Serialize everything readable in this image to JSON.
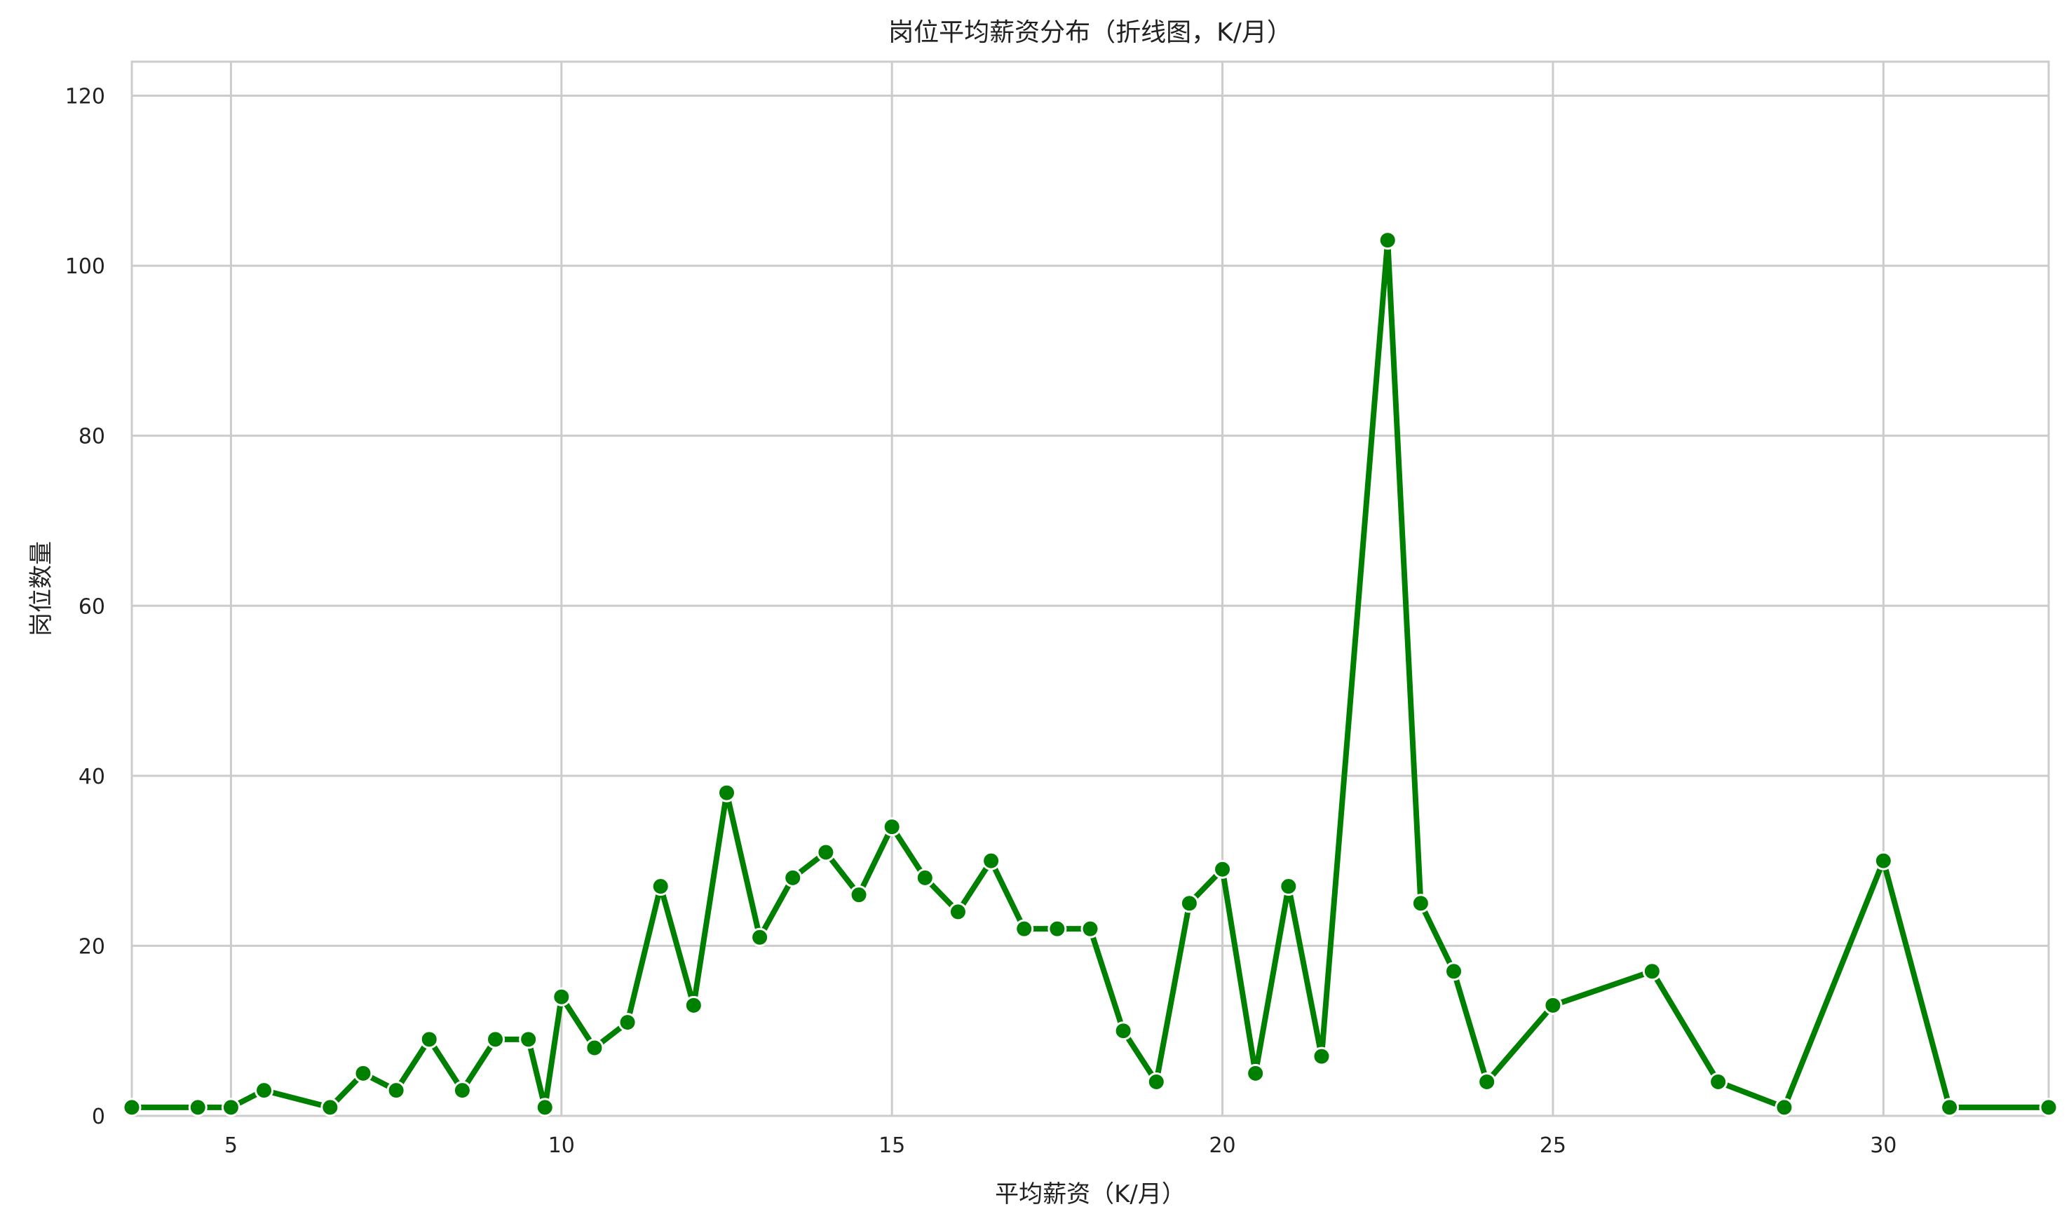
{
  "chart_data": {
    "type": "line",
    "title": "岗位平均薪资分布（折线图，K/月）",
    "xlabel": "平均薪资（K/月）",
    "ylabel": "岗位数量",
    "xlim": [
      3.5,
      32.5
    ],
    "ylim": [
      0,
      124
    ],
    "x_ticks": [
      5,
      10,
      15,
      20,
      25,
      30
    ],
    "y_ticks": [
      0,
      20,
      40,
      60,
      80,
      100,
      120
    ],
    "grid": true,
    "legend": "none",
    "line_color": "#008000",
    "series": [
      {
        "x": [
          3.5,
          4.5,
          5,
          5.5,
          6.5,
          7,
          7.5,
          8,
          8.5,
          9,
          9.5,
          9.75,
          10,
          10.5,
          11,
          11.5,
          12,
          12.5,
          13,
          13.5,
          14,
          14.5,
          15,
          15.5,
          16,
          16.5,
          17,
          17.5,
          18,
          18.5,
          19,
          19.5,
          20,
          20.5,
          21,
          21.5,
          22.5,
          23,
          23.5,
          24,
          25,
          26.5,
          27.5,
          28.5,
          30,
          31,
          32.5
        ],
        "y": [
          1,
          1,
          1,
          3,
          1,
          5,
          3,
          9,
          3,
          9,
          9,
          1,
          14,
          8,
          11,
          27,
          13,
          38,
          21,
          28,
          31,
          26,
          34,
          28,
          24,
          30,
          22,
          22,
          22,
          10,
          4,
          25,
          29,
          5,
          27,
          7,
          103,
          25,
          17,
          4,
          13,
          17,
          4,
          1,
          30,
          1,
          1
        ]
      }
    ]
  }
}
